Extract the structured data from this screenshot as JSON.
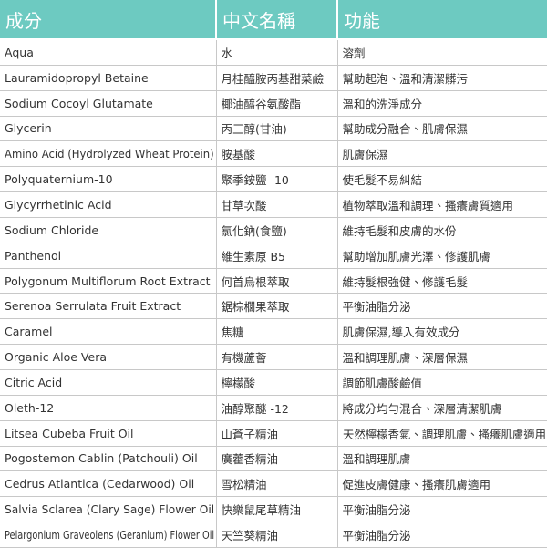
{
  "table": {
    "header": [
      "成分",
      "中文名稱",
      "功能"
    ],
    "rows": [
      [
        "Aqua",
        "水",
        "溶劑"
      ],
      [
        "Lauramidopropyl Betaine",
        "月桂醯胺丙基甜菜鹼",
        "幫助起泡、溫和清潔髒污"
      ],
      [
        "Sodium Cocoyl Glutamate",
        "椰油醯谷氨酸酯",
        "溫和的洗淨成分"
      ],
      [
        "Glycerin",
        "丙三醇(甘油)",
        "幫助成分融合、肌膚保濕"
      ],
      [
        "Amino Acid (Hydrolyzed Wheat Protein)",
        "胺基酸",
        "肌膚保濕"
      ],
      [
        "Polyquaternium-10",
        "聚季銨鹽 -10",
        "使毛髮不易糾結"
      ],
      [
        "Glycyrrhetinic Acid",
        "甘草次酸",
        "植物萃取溫和調理、搔癢膚質適用"
      ],
      [
        "Sodium Chloride",
        "氯化鈉(食鹽)",
        "維持毛髮和皮膚的水份"
      ],
      [
        "Panthenol",
        "維生素原 B5",
        "幫助增加肌膚光澤、修護肌膚"
      ],
      [
        "Polygonum Multiflorum Root Extract",
        "何首烏根萃取",
        "維持髮根強健、修護毛髮"
      ],
      [
        "Serenoa Serrulata Fruit Extract",
        "鋸棕櫚果萃取",
        "平衡油脂分泌"
      ],
      [
        "Caramel",
        "焦糖",
        "肌膚保濕,導入有效成分"
      ],
      [
        "Organic Aloe Vera",
        "有機蘆薈",
        "溫和調理肌膚、深層保濕"
      ],
      [
        "Citric Acid",
        "檸檬酸",
        "調節肌膚酸鹼值"
      ],
      [
        "Oleth-12",
        "油醇聚醚 -12",
        "將成分均勻混合、深層清潔肌膚"
      ],
      [
        "Litsea Cubeba Fruit Oil",
        "山蒼子精油",
        "天然檸檬香氣、調理肌膚、搔癢肌膚適用"
      ],
      [
        "Pogostemon Cablin (Patchouli) Oil",
        "廣藿香精油",
        "溫和調理肌膚"
      ],
      [
        "Cedrus Atlantica (Cedarwood) Oil",
        "雪松精油",
        "促進皮膚健康、搔癢肌膚適用"
      ],
      [
        "Salvia Sclarea (Clary Sage) Flower Oil",
        "快樂鼠尾草精油",
        "平衡油脂分泌"
      ],
      [
        "Pelargonium Graveolens (Geranium) Flower Oil",
        "天竺葵精油",
        "平衡油脂分泌"
      ]
    ]
  }
}
